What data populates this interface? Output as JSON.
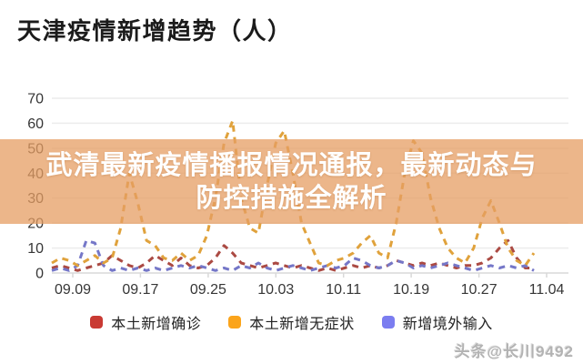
{
  "title": "天津疫情新增趋势（人）",
  "overlay": {
    "line1": "武清最新疫情播报情况通报，最新动态与",
    "line2": "防控措施全解析",
    "bg_color": "#e59d63",
    "text_color": "#ffffff"
  },
  "watermark": "头条@长川9492",
  "colors": {
    "grid": "#ececec",
    "axis": "#d9d9d9",
    "axis_text": "#363636"
  },
  "chart_data": {
    "type": "line",
    "title": "天津疫情新增趋势（人）",
    "line_style": "dashed",
    "grid": true,
    "legend_position": "bottom",
    "ylim": [
      0,
      70
    ],
    "y_ticks": [
      0,
      10,
      20,
      30,
      40,
      50,
      60,
      70
    ],
    "x_tick_labels": [
      "09.09",
      "09.17",
      "09.25",
      "10.03",
      "10.11",
      "10.19",
      "10.27",
      "11.04"
    ],
    "x_unit": "day",
    "series": [
      {
        "name": "本土新增确诊",
        "color": "#ab4a43",
        "legend_color": "#c93a33",
        "values": [
          2,
          3,
          2,
          1,
          2,
          3,
          4,
          7,
          5,
          3,
          2,
          4,
          7,
          5,
          3,
          6,
          3,
          2,
          3,
          6,
          11,
          8,
          4,
          3,
          2,
          3,
          4,
          3,
          2,
          3,
          2,
          1,
          2,
          1,
          2,
          3,
          2,
          3,
          2,
          3,
          5,
          4,
          3,
          4,
          3,
          4,
          3,
          2,
          3,
          3,
          4,
          6,
          10,
          13,
          6,
          2,
          2
        ]
      },
      {
        "name": "本土新增无症状",
        "color": "#e0a23c",
        "legend_color": "#fba41b",
        "values": [
          4,
          6,
          5,
          3,
          5,
          7,
          4,
          6,
          18,
          40,
          28,
          13,
          11,
          6,
          5,
          8,
          5,
          7,
          15,
          30,
          52,
          61,
          30,
          18,
          16,
          35,
          52,
          57,
          40,
          20,
          12,
          4,
          3,
          5,
          6,
          8,
          12,
          15,
          8,
          6,
          20,
          40,
          53,
          48,
          30,
          18,
          10,
          6,
          4,
          10,
          22,
          29,
          20,
          10,
          5,
          3,
          8
        ]
      },
      {
        "name": "新增境外输入",
        "color": "#7577c8",
        "legend_color": "#7b7df0",
        "values": [
          1,
          2,
          1,
          3,
          13,
          12,
          3,
          1,
          2,
          1,
          2,
          1,
          2,
          1,
          2,
          3,
          2,
          3,
          2,
          1,
          2,
          1,
          3,
          2,
          4,
          2,
          1,
          2,
          3,
          2,
          1,
          2,
          3,
          2,
          3,
          6,
          5,
          3,
          2,
          3,
          5,
          4,
          2,
          3,
          2,
          3,
          4,
          3,
          2,
          1,
          2,
          3,
          2,
          3,
          2,
          3,
          1
        ]
      }
    ]
  }
}
